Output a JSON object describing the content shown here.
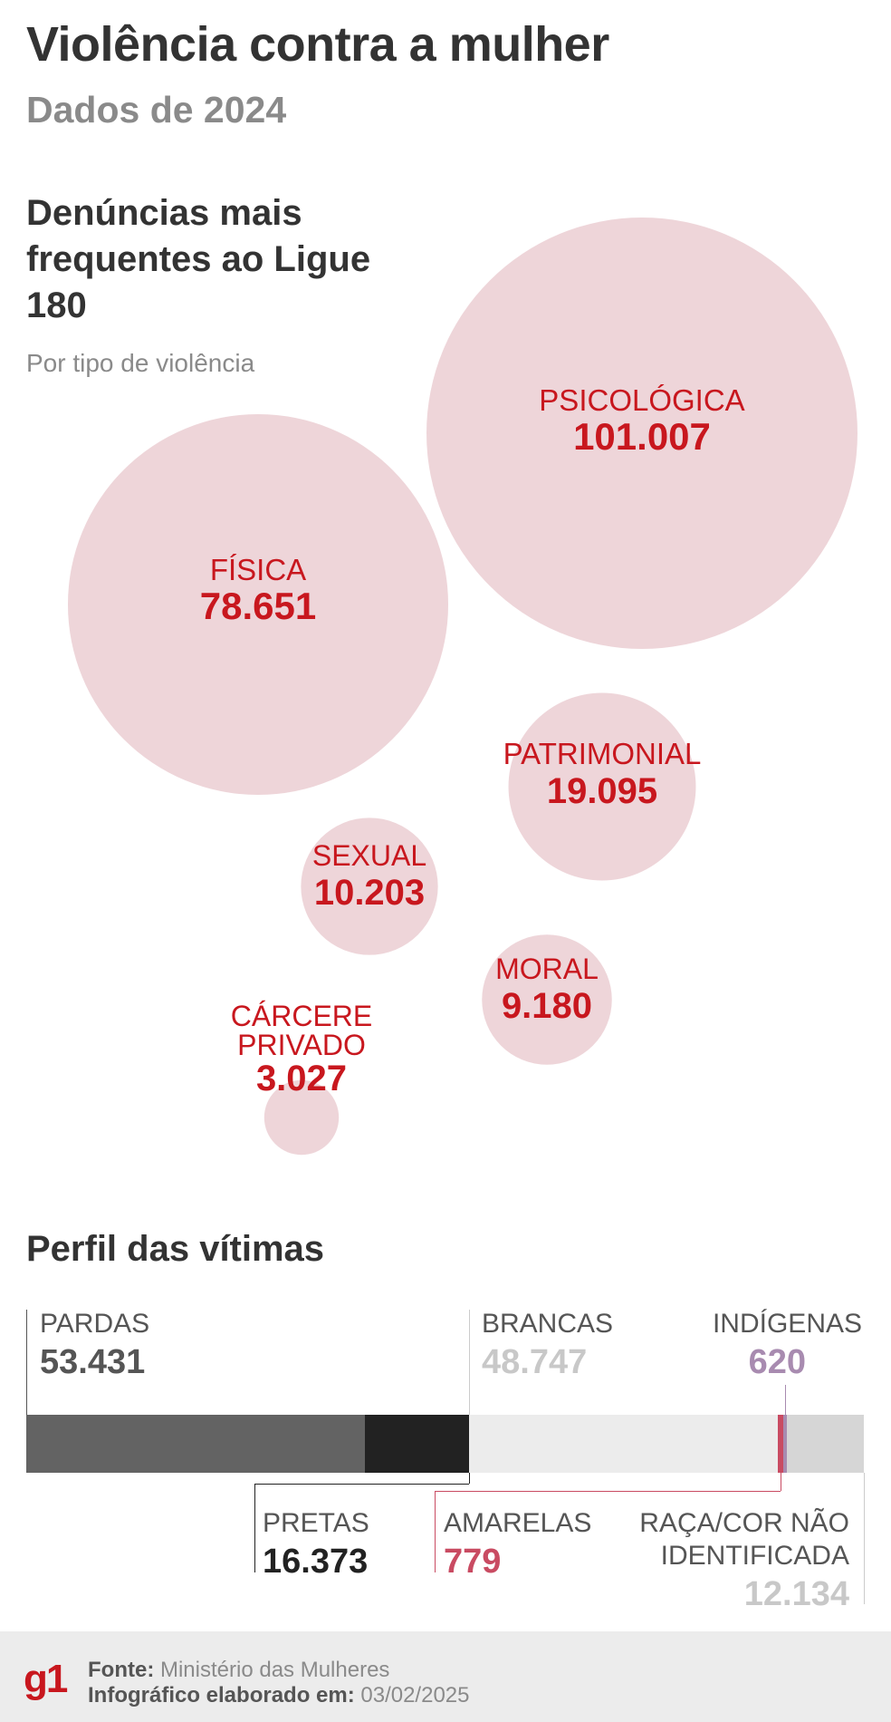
{
  "title": "Violência contra a mulher",
  "subtitle": "Dados de 2024",
  "section1": {
    "title": "Denúncias mais frequentes ao Ligue 180",
    "subtitle": "Por tipo de violência"
  },
  "section2": {
    "title": "Perfil das vítimas"
  },
  "chart_data": [
    {
      "type": "bubble",
      "title": "Denúncias mais frequentes ao Ligue 180",
      "subtitle": "Por tipo de violência",
      "categories": [
        "PSICOLÓGICA",
        "FÍSICA",
        "PATRIMONIAL",
        "SEXUAL",
        "MORAL",
        "CÁRCERE PRIVADO"
      ],
      "values": [
        101007,
        78651,
        19095,
        10203,
        9180,
        3027
      ],
      "value_labels": [
        "101.007",
        "78.651",
        "19.095",
        "10.203",
        "9.180",
        "3.027"
      ],
      "colors": {
        "bubble": "#e8c7cc",
        "text": "#c8171e"
      }
    },
    {
      "type": "stacked-bar",
      "title": "Perfil das vítimas",
      "categories": [
        "PARDAS",
        "PRETAS",
        "BRANCAS",
        "AMARELAS",
        "INDÍGENAS",
        "RAÇA/COR NÃO IDENTIFICADA"
      ],
      "values": [
        53431,
        16373,
        48747,
        779,
        620,
        12134
      ],
      "value_labels": [
        "53.431",
        "16.373",
        "48.747",
        "779",
        "620",
        "12.134"
      ],
      "colors": [
        "#636363",
        "#222222",
        "#ececec",
        "#c94b62",
        "#a88bb0",
        "#d6d6d6"
      ],
      "value_colors": [
        "#555555",
        "#222222",
        "#c8c8c8",
        "#c94b62",
        "#a88bb0",
        "#c8c8c8"
      ]
    }
  ],
  "footer": {
    "logo": "g1",
    "source_label": "Fonte:",
    "source_value": "Ministério das Mulheres",
    "date_label": "Infográfico elaborado em:",
    "date_value": "03/02/2025"
  }
}
